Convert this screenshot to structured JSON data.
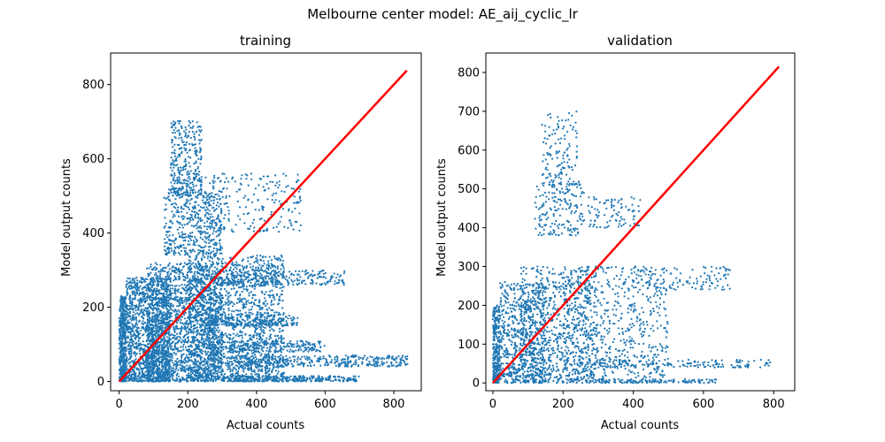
{
  "figure": {
    "suptitle": "Melbourne center model:  AE_aij_cyclic_lr"
  },
  "colors": {
    "points": "#1f77b4",
    "identity_line": "#ff0000",
    "axes": "#000000",
    "background": "#ffffff"
  },
  "chart_data": [
    {
      "type": "scatter",
      "title": "training",
      "xlabel": "Actual counts",
      "ylabel": "Model output counts",
      "xlim": [
        -25,
        880
      ],
      "ylim": [
        -25,
        885
      ],
      "xticks": [
        0,
        200,
        400,
        600,
        800
      ],
      "yticks": [
        0,
        200,
        400,
        600,
        800
      ],
      "identity_line": {
        "x": [
          0,
          838
        ],
        "y": [
          0,
          838
        ]
      },
      "clusters": [
        {
          "x": [
            0,
            20
          ],
          "y": [
            0,
            230
          ],
          "n": 450
        },
        {
          "x": [
            20,
            150
          ],
          "y": [
            0,
            280
          ],
          "n": 1300
        },
        {
          "x": [
            80,
            300
          ],
          "y": [
            0,
            320
          ],
          "n": 1800
        },
        {
          "x": [
            200,
            480
          ],
          "y": [
            0,
            340
          ],
          "n": 1600
        },
        {
          "x": [
            130,
            300
          ],
          "y": [
            340,
            520
          ],
          "n": 450
        },
        {
          "x": [
            150,
            240
          ],
          "y": [
            500,
            705
          ],
          "n": 320
        },
        {
          "x": [
            250,
            530
          ],
          "y": [
            400,
            560
          ],
          "n": 220
        },
        {
          "x": [
            280,
            660
          ],
          "y": [
            260,
            300
          ],
          "n": 260
        },
        {
          "x": [
            260,
            520
          ],
          "y": [
            150,
            180
          ],
          "n": 230
        },
        {
          "x": [
            260,
            600
          ],
          "y": [
            80,
            110
          ],
          "n": 230
        },
        {
          "x": [
            300,
            840
          ],
          "y": [
            40,
            70
          ],
          "n": 380
        },
        {
          "x": [
            300,
            700
          ],
          "y": [
            0,
            15
          ],
          "n": 300
        }
      ]
    },
    {
      "type": "scatter",
      "title": "validation",
      "xlabel": "Actual counts",
      "ylabel": "Model output counts",
      "xlim": [
        -20,
        860
      ],
      "ylim": [
        -20,
        850
      ],
      "xticks": [
        0,
        200,
        400,
        600,
        800
      ],
      "yticks": [
        0,
        100,
        200,
        300,
        400,
        500,
        600,
        700,
        800
      ],
      "identity_line": {
        "x": [
          0,
          815
        ],
        "y": [
          0,
          815
        ]
      },
      "clusters": [
        {
          "x": [
            0,
            20
          ],
          "y": [
            0,
            200
          ],
          "n": 300
        },
        {
          "x": [
            20,
            150
          ],
          "y": [
            0,
            260
          ],
          "n": 650
        },
        {
          "x": [
            80,
            300
          ],
          "y": [
            0,
            300
          ],
          "n": 800
        },
        {
          "x": [
            200,
            500
          ],
          "y": [
            0,
            300
          ],
          "n": 600
        },
        {
          "x": [
            120,
            260
          ],
          "y": [
            380,
            520
          ],
          "n": 180
        },
        {
          "x": [
            140,
            240
          ],
          "y": [
            500,
            700
          ],
          "n": 130
        },
        {
          "x": [
            270,
            420
          ],
          "y": [
            400,
            480
          ],
          "n": 90
        },
        {
          "x": [
            400,
            680
          ],
          "y": [
            240,
            300
          ],
          "n": 120
        },
        {
          "x": [
            300,
            800
          ],
          "y": [
            40,
            60
          ],
          "n": 160
        },
        {
          "x": [
            300,
            640
          ],
          "y": [
            0,
            10
          ],
          "n": 120
        }
      ]
    }
  ]
}
